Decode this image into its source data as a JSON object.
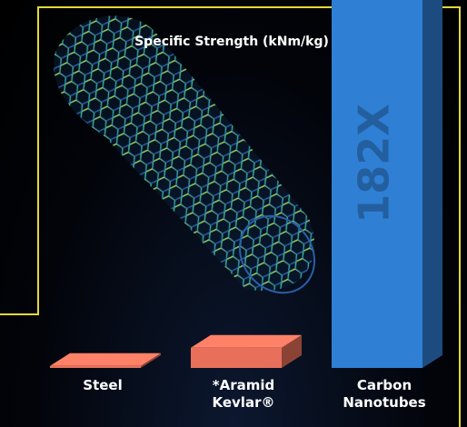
{
  "chart_data": {
    "type": "bar",
    "title": "Specific Strength (kNm/kg)",
    "categories": [
      "Steel",
      "*Aramid Kevlar®",
      "Carbon Nanotubes"
    ],
    "series": [
      {
        "name": null,
        "colors": [
          "#e8705a",
          "#e8705a",
          "#2f7fd4"
        ],
        "values": [
          1,
          10,
          182
        ],
        "value_labels": [
          null,
          null,
          "182X"
        ]
      }
    ],
    "ylim": [
      0,
      182
    ]
  }
}
